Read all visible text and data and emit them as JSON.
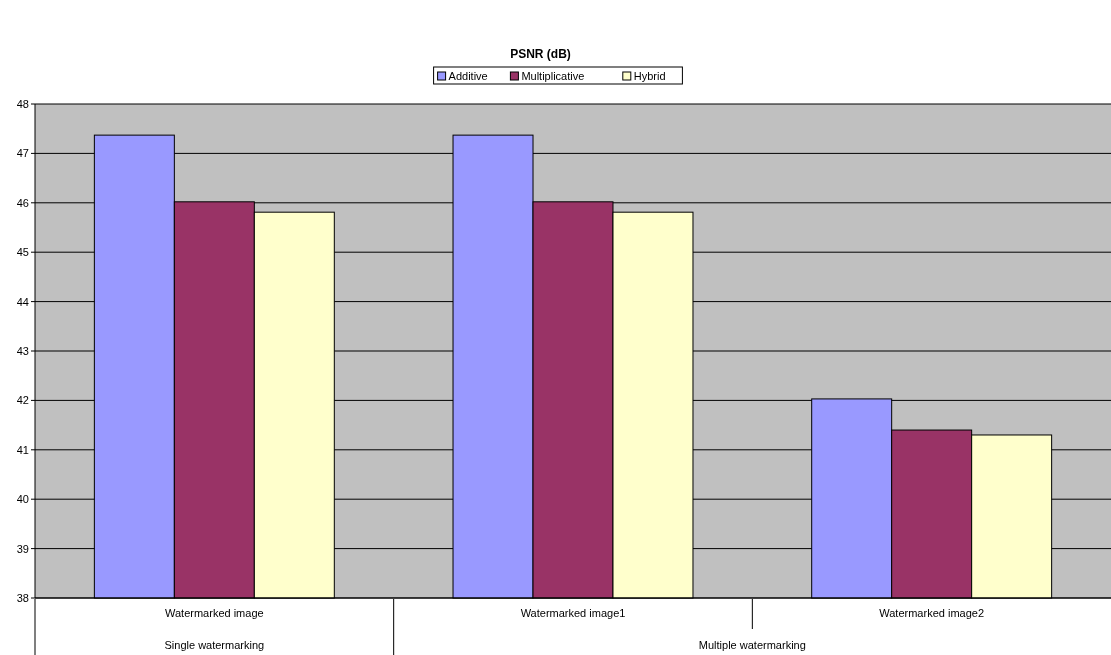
{
  "chart_data": {
    "type": "bar",
    "title": "PSNR (dB)",
    "categories": [
      "Watermarked image",
      "Watermarked image1",
      "Watermarked image2"
    ],
    "series": [
      {
        "name": "Additive",
        "color": "#9999ff",
        "values": [
          47.37,
          47.37,
          42.03
        ]
      },
      {
        "name": "Multiplicative",
        "color": "#993366",
        "values": [
          46.02,
          46.02,
          41.4
        ]
      },
      {
        "name": "Hybrid",
        "color": "#ffffcc",
        "values": [
          45.81,
          45.81,
          41.3
        ]
      }
    ],
    "ylim": [
      38,
      48
    ],
    "yticks": [
      38,
      39,
      40,
      41,
      42,
      43,
      44,
      45,
      46,
      47,
      48
    ],
    "grid": "y",
    "legend": "top",
    "annotations": [
      "Single watermarking",
      "Multiple watermarking"
    ]
  }
}
